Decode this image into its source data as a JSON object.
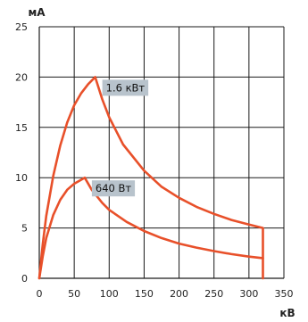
{
  "chart_data": {
    "type": "line",
    "xlabel": "кВ",
    "ylabel": "мА",
    "xlim": [
      0,
      350
    ],
    "ylim": [
      0,
      25
    ],
    "xticks": [
      0,
      50,
      100,
      150,
      200,
      250,
      300,
      350
    ],
    "yticks": [
      0,
      5,
      10,
      15,
      20,
      25
    ],
    "grid": true,
    "line_color": "#e8502a",
    "label_bg": "#b8c3cc",
    "series": [
      {
        "name": "1.6 кВт",
        "x": [
          0,
          5,
          10,
          20,
          30,
          40,
          50,
          60,
          70,
          80,
          90,
          100,
          120,
          150,
          175,
          200,
          225,
          250,
          275,
          300,
          320,
          320
        ],
        "y": [
          0,
          3.4,
          6.2,
          10.2,
          13.2,
          15.5,
          17.2,
          18.4,
          19.3,
          20.0,
          17.8,
          16.0,
          13.3,
          10.7,
          9.1,
          8.0,
          7.1,
          6.4,
          5.8,
          5.35,
          5.0,
          0
        ]
      },
      {
        "name": "640 Вт",
        "x": [
          0,
          5,
          10,
          20,
          30,
          40,
          50,
          60,
          65,
          75,
          90,
          100,
          125,
          150,
          175,
          200,
          225,
          250,
          275,
          300,
          320
        ],
        "y": [
          0,
          2.2,
          4.0,
          6.3,
          7.8,
          8.8,
          9.4,
          9.8,
          10.0,
          8.8,
          7.5,
          6.8,
          5.6,
          4.7,
          4.0,
          3.45,
          3.05,
          2.7,
          2.4,
          2.15,
          2.0
        ]
      }
    ]
  }
}
